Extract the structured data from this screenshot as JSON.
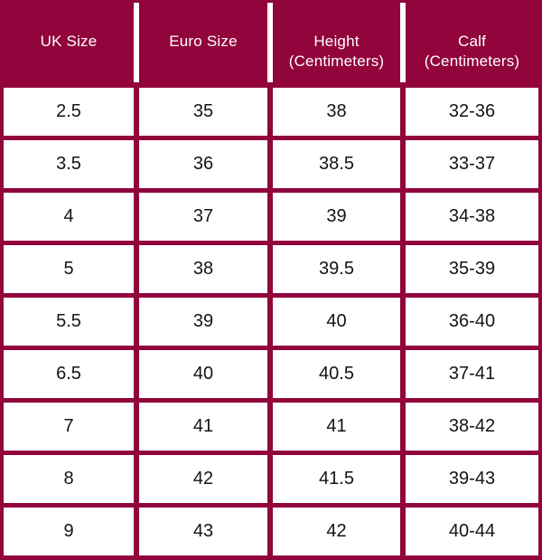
{
  "colors": {
    "maroon": "#91053C",
    "cell_background": "#FFFFFF",
    "header_text": "#FFFFFF",
    "body_text": "#141414"
  },
  "chart_data": {
    "type": "table",
    "columns": [
      "UK Size",
      "Euro Size",
      "Height\n(Centimeters)",
      "Calf\n(Centimeters)"
    ],
    "rows": [
      [
        "2.5",
        "35",
        "38",
        "32-36"
      ],
      [
        "3.5",
        "36",
        "38.5",
        "33-37"
      ],
      [
        "4",
        "37",
        "39",
        "34-38"
      ],
      [
        "5",
        "38",
        "39.5",
        "35-39"
      ],
      [
        "5.5",
        "39",
        "40",
        "36-40"
      ],
      [
        "6.5",
        "40",
        "40.5",
        "37-41"
      ],
      [
        "7",
        "41",
        "41",
        "38-42"
      ],
      [
        "8",
        "42",
        "41.5",
        "39-43"
      ],
      [
        "9",
        "43",
        "42",
        "40-44"
      ]
    ]
  }
}
